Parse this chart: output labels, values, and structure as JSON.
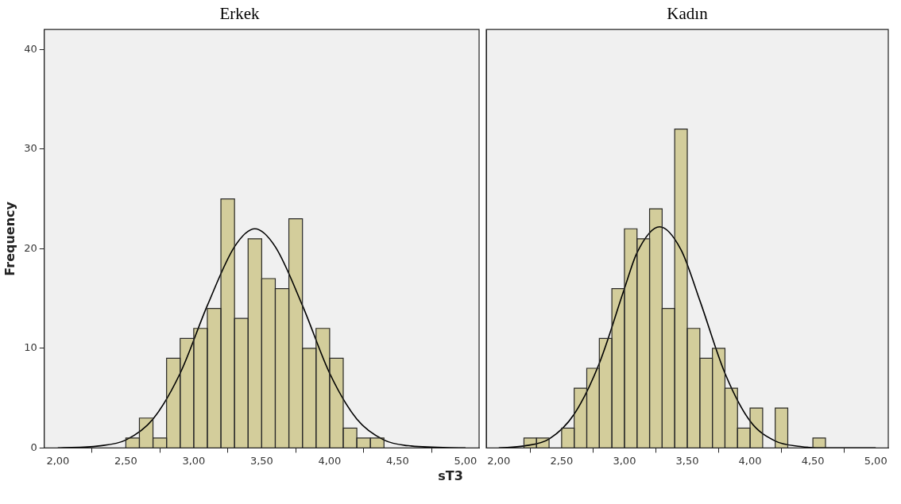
{
  "chart_data": [
    {
      "type": "histogram",
      "title": "Erkek",
      "xlabel": "sT3",
      "ylabel": "Frequency",
      "bins": [
        2.5,
        2.6,
        2.7,
        2.8,
        2.9,
        3.0,
        3.1,
        3.2,
        3.3,
        3.4,
        3.5,
        3.6,
        3.7,
        3.8,
        3.9,
        4.0,
        4.1,
        4.2,
        4.3,
        4.4
      ],
      "values": [
        1,
        3,
        1,
        9,
        11,
        12,
        14,
        25,
        13,
        21,
        17,
        16,
        23,
        10,
        12,
        9,
        2,
        1,
        1
      ],
      "color": "#d3cd9b",
      "series": [
        {
          "type": "line",
          "color": "#000000",
          "x": [
            2.0,
            2.3,
            2.5,
            2.7,
            2.9,
            3.1,
            3.3,
            3.45,
            3.6,
            3.8,
            4.0,
            4.2,
            4.4,
            4.6,
            5.0
          ],
          "values": [
            0,
            0.2,
            0.8,
            2.9,
            7.5,
            14.3,
            20.2,
            22,
            20.2,
            14.3,
            7.5,
            2.9,
            0.8,
            0.2,
            0
          ]
        }
      ],
      "marker": "none",
      "grid": false,
      "xlim": [
        1.9,
        5.1
      ],
      "ylim": [
        0,
        42
      ],
      "xticks": [
        {
          "value": 2,
          "label": "2,00"
        },
        {
          "value": 2.5,
          "label": "2,50"
        },
        {
          "value": 3,
          "label": "3,00"
        },
        {
          "value": 3.5,
          "label": "3,50"
        },
        {
          "value": 4,
          "label": "4,00"
        },
        {
          "value": 4.5,
          "label": "4,50"
        },
        {
          "value": 5,
          "label": "5,00"
        }
      ],
      "yticks": [
        0,
        10,
        20,
        30,
        40
      ]
    },
    {
      "type": "histogram",
      "title": "Kadın",
      "bins": [
        2.2,
        2.3,
        2.4,
        2.5,
        2.6,
        2.7,
        2.8,
        2.9,
        3.0,
        3.1,
        3.2,
        3.3,
        3.4,
        3.5,
        3.6,
        3.7,
        3.8,
        3.9,
        4.0,
        4.1,
        4.2,
        4.3,
        4.4,
        4.5,
        4.6
      ],
      "values": [
        1,
        1,
        0,
        2,
        6,
        8,
        11,
        16,
        22,
        21,
        24,
        14,
        32,
        12,
        9,
        10,
        6,
        2,
        4,
        0,
        4,
        0,
        0,
        1
      ],
      "color": "#d3cd9b",
      "series": [
        {
          "type": "line",
          "color": "#000000",
          "x": [
            2.0,
            2.2,
            2.4,
            2.6,
            2.8,
            3.0,
            3.1,
            3.28,
            3.45,
            3.6,
            3.8,
            4.0,
            4.2,
            4.4,
            4.6,
            5.0
          ],
          "values": [
            0,
            0.2,
            0.9,
            3.4,
            8.5,
            16,
            19.6,
            22.2,
            19.9,
            14.8,
            7.5,
            2.7,
            0.7,
            0.15,
            0,
            0
          ]
        }
      ],
      "marker": "none",
      "grid": false,
      "tick_labels": "x",
      "xlim": [
        1.9,
        5.1
      ],
      "ylim": [
        0,
        42
      ],
      "xticks": [
        {
          "value": 2,
          "label": "2,00"
        },
        {
          "value": 2.5,
          "label": "2,50"
        },
        {
          "value": 3,
          "label": "3,00"
        },
        {
          "value": 3.5,
          "label": "3,50"
        },
        {
          "value": 4,
          "label": "4,00"
        },
        {
          "value": 4.5,
          "label": "4,50"
        },
        {
          "value": 5,
          "label": "5,00"
        }
      ],
      "yticks": [
        0,
        10,
        20,
        30,
        40
      ]
    }
  ]
}
